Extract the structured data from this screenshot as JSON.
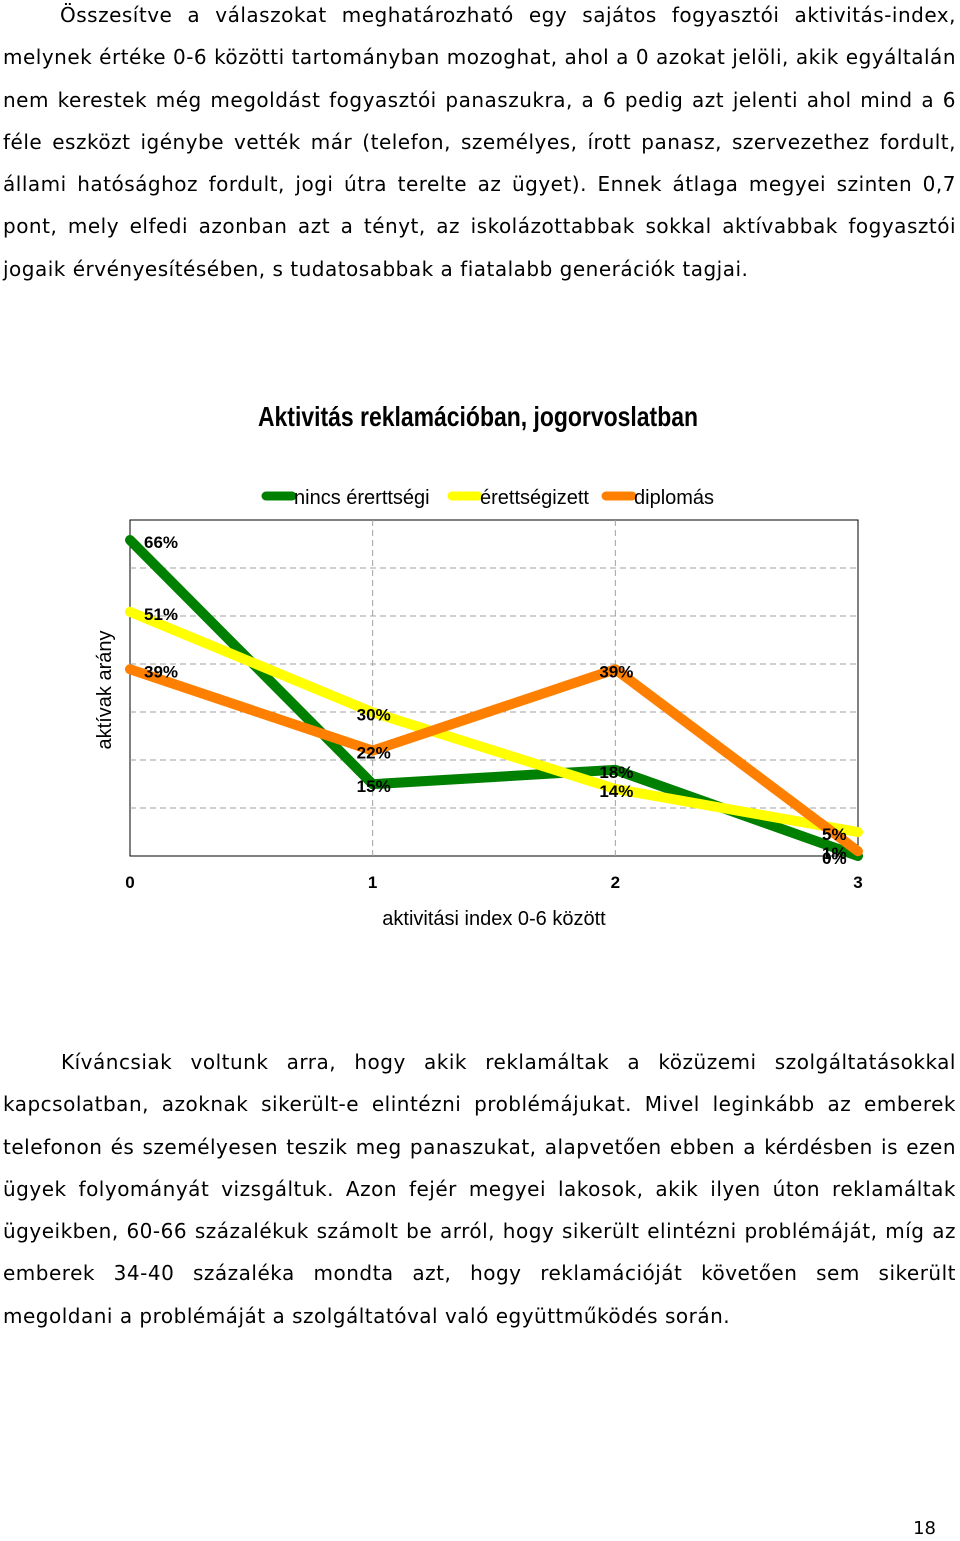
{
  "paragraphs": [
    "Összesítve a válaszokat meghatározható egy sajátos fogyasztói aktivitás-index, melynek értéke 0-6 közötti tartományban mozoghat, ahol a 0 azokat jelöli, akik egyáltalán nem kerestek még megoldást fogyasztói panaszukra, a 6 pedig azt jelenti ahol mind a 6 féle eszközt igénybe vették már (telefon, személyes, írott panasz, szervezethez fordult, állami hatósághoz fordult, jogi útra terelte az ügyet). Ennek átlaga megyei szinten 0,7 pont, mely elfedi azonban azt a tényt, az iskolázottabbak sokkal aktívabbak fogyasztói jogaik érvényesítésében, s tudatosabbak a fiatalabb generációk tagjai.",
    "Kíváncsiak voltunk arra, hogy akik reklamáltak a közüzemi szolgáltatásokkal kapcsolatban, azoknak sikerült-e elintézni problémájukat. Mivel leginkább az emberek telefonon és személyesen teszik meg panaszukat, alapvetően ebben a kérdésben is ezen ügyek folyományát vizsgáltuk. Azon fejér megyei lakosok, akik ilyen úton reklamáltak ügyeikben, 60-66 százalékuk számolt be arról, hogy sikerült elintézni problémáját, míg az emberek 34-40 százaléka mondta azt, hogy reklamációját követően sem sikerült megoldani a problémáját a szolgáltatóval való együttműködés során."
  ],
  "page_number": "18",
  "chart_data": {
    "type": "line",
    "title": "Aktivitás reklamációban, jogorvoslatban",
    "xlabel": "aktivitási index 0-6 között",
    "ylabel": "aktívak arány",
    "x": [
      0,
      1,
      2,
      3
    ],
    "x_tick_labels": [
      "0",
      "1",
      "2",
      "3"
    ],
    "ylim": [
      0,
      66
    ],
    "grid": true,
    "legend_position": "top",
    "series": [
      {
        "name": "nincs érerttségi",
        "color": "#008000",
        "values": [
          66,
          15,
          18,
          0
        ],
        "labels": [
          "66%",
          "15%",
          "18%",
          "0%"
        ]
      },
      {
        "name": "érettségizett",
        "color": "#FFFF00",
        "values": [
          51,
          30,
          14,
          5
        ],
        "labels": [
          "51%",
          "30%",
          "14%",
          "5%"
        ]
      },
      {
        "name": "diplomás",
        "color": "#FF8000",
        "values": [
          39,
          22,
          39,
          1
        ],
        "labels": [
          "39%",
          "22%",
          "39%",
          "1%"
        ]
      }
    ]
  }
}
